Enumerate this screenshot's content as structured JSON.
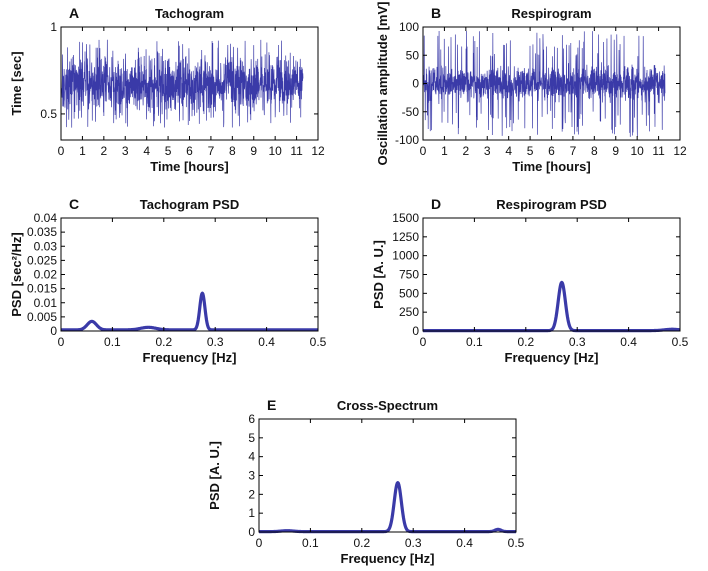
{
  "figure": {
    "line_color": "#3a3aa8",
    "axis_color": "#000000"
  },
  "chart_data": [
    {
      "id": "A",
      "panel_label": "A",
      "type": "line",
      "title": "Tachogram",
      "xlabel": "Time [hours]",
      "ylabel": "Time [sec]",
      "xlim": [
        0,
        12
      ],
      "ylim": [
        0.35,
        1.0
      ],
      "xticks": [
        0,
        1,
        2,
        3,
        4,
        5,
        6,
        7,
        8,
        9,
        10,
        11,
        12
      ],
      "xtick_labels": [
        "0",
        "1",
        "2",
        "3",
        "4",
        "5",
        "6",
        "7",
        "8",
        "9",
        "10",
        "11",
        "12"
      ],
      "yticks": [
        0.5,
        1.0
      ],
      "ytick_labels": [
        "0.5",
        "1"
      ],
      "signal": {
        "kind": "noise",
        "x_end": 11.3,
        "center": 0.67,
        "spread": 0.07,
        "spike_low": 0.42,
        "spike_high": 0.93
      }
    },
    {
      "id": "B",
      "panel_label": "B",
      "type": "line",
      "title": "Respirogram",
      "xlabel": "Time [hours]",
      "ylabel": "Oscillation amplitude [mV]",
      "xlim": [
        0,
        12
      ],
      "ylim": [
        -100,
        100
      ],
      "xticks": [
        0,
        1,
        2,
        3,
        4,
        5,
        6,
        7,
        8,
        9,
        10,
        11,
        12
      ],
      "xtick_labels": [
        "0",
        "1",
        "2",
        "3",
        "4",
        "5",
        "6",
        "7",
        "8",
        "9",
        "10",
        "11",
        "12"
      ],
      "yticks": [
        -100,
        -50,
        0,
        50,
        100
      ],
      "ytick_labels": [
        "-100",
        "-50",
        "0",
        "50",
        "100"
      ],
      "signal": {
        "kind": "noise",
        "x_end": 11.3,
        "center": 0,
        "spread": 14,
        "spike_low": -95,
        "spike_high": 95
      }
    },
    {
      "id": "C",
      "panel_label": "C",
      "type": "line",
      "title": "Tachogram PSD",
      "xlabel": "Frequency [Hz]",
      "ylabel": "PSD [sec²/Hz]",
      "xlim": [
        0,
        0.5
      ],
      "ylim": [
        0,
        0.04
      ],
      "xticks": [
        0,
        0.1,
        0.2,
        0.3,
        0.4,
        0.5
      ],
      "xtick_labels": [
        "0",
        "0.1",
        "0.2",
        "0.3",
        "0.4",
        "0.5"
      ],
      "yticks": [
        0,
        0.005,
        0.01,
        0.015,
        0.02,
        0.025,
        0.03,
        0.035,
        0.04
      ],
      "ytick_labels": [
        "0",
        "0.005",
        "0.01",
        "0.015",
        "0.02",
        "0.025",
        "0.03",
        "0.035",
        "0.04"
      ],
      "signal": {
        "kind": "peaks",
        "baseline": 0.0004,
        "peaks": [
          {
            "x": 0.06,
            "height": 0.003,
            "width": 0.009
          },
          {
            "x": 0.17,
            "height": 0.0009,
            "width": 0.015
          },
          {
            "x": 0.275,
            "height": 0.013,
            "width": 0.005
          }
        ]
      }
    },
    {
      "id": "D",
      "panel_label": "D",
      "type": "line",
      "title": "Respirogram PSD",
      "xlabel": "Frequency [Hz]",
      "ylabel": "PSD [A. U.]",
      "xlim": [
        0,
        0.5
      ],
      "ylim": [
        0,
        1500
      ],
      "xticks": [
        0,
        0.1,
        0.2,
        0.3,
        0.4,
        0.5
      ],
      "xtick_labels": [
        "0",
        "0.1",
        "0.2",
        "0.3",
        "0.4",
        "0.5"
      ],
      "yticks": [
        0,
        250,
        500,
        750,
        1000,
        1250,
        1500
      ],
      "ytick_labels": [
        "0",
        "250",
        "500",
        "750",
        "1000",
        "1250",
        "1500"
      ],
      "signal": {
        "kind": "peaks",
        "baseline": 5,
        "peaks": [
          {
            "x": 0.27,
            "height": 640,
            "width": 0.007
          },
          {
            "x": 0.485,
            "height": 18,
            "width": 0.015
          }
        ]
      }
    },
    {
      "id": "E",
      "panel_label": "E",
      "type": "line",
      "title": "Cross-Spectrum",
      "xlabel": "Frequency [Hz]",
      "ylabel": "PSD [A. U.]",
      "xlim": [
        0,
        0.5
      ],
      "ylim": [
        0,
        6
      ],
      "xticks": [
        0,
        0.1,
        0.2,
        0.3,
        0.4,
        0.5
      ],
      "xtick_labels": [
        "0",
        "0.1",
        "0.2",
        "0.3",
        "0.4",
        "0.5"
      ],
      "yticks": [
        0,
        1,
        2,
        3,
        4,
        5,
        6
      ],
      "ytick_labels": [
        "0",
        "1",
        "2",
        "3",
        "4",
        "5",
        "6"
      ],
      "signal": {
        "kind": "peaks",
        "baseline": 0.02,
        "peaks": [
          {
            "x": 0.055,
            "height": 0.05,
            "width": 0.012
          },
          {
            "x": 0.27,
            "height": 2.6,
            "width": 0.007
          },
          {
            "x": 0.465,
            "height": 0.12,
            "width": 0.006
          }
        ]
      }
    }
  ]
}
